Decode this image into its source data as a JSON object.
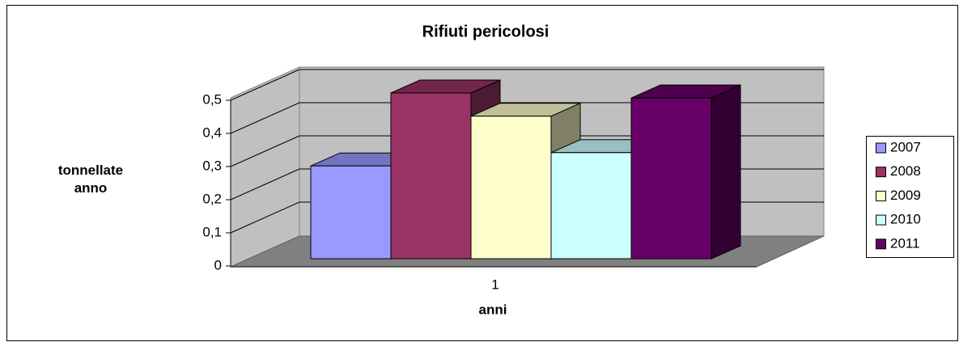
{
  "chart_data": {
    "type": "bar3d",
    "title": "Rifiuti pericolosi",
    "y_label": "tonnellate anno",
    "x_label": "anni",
    "categories": [
      "1"
    ],
    "series": [
      {
        "name": "2007",
        "color": "#9999ff",
        "values": [
          0.28
        ]
      },
      {
        "name": "2008",
        "color": "#993366",
        "values": [
          0.5
        ]
      },
      {
        "name": "2009",
        "color": "#ffffcc",
        "values": [
          0.43
        ]
      },
      {
        "name": "2010",
        "color": "#ccffff",
        "values": [
          0.32
        ]
      },
      {
        "name": "2011",
        "color": "#660066",
        "values": [
          0.485
        ]
      }
    ],
    "ylim": [
      0,
      0.5
    ],
    "yticks": [
      0,
      {
        "value": 0.1,
        "label": "0,1"
      },
      {
        "value": 0.2,
        "label": "0,2"
      },
      {
        "value": 0.3,
        "label": "0,3"
      },
      {
        "value": 0.4,
        "label": "0,4"
      },
      {
        "value": 0.5,
        "label": "0,5"
      }
    ],
    "grid": true,
    "legend": "right"
  }
}
